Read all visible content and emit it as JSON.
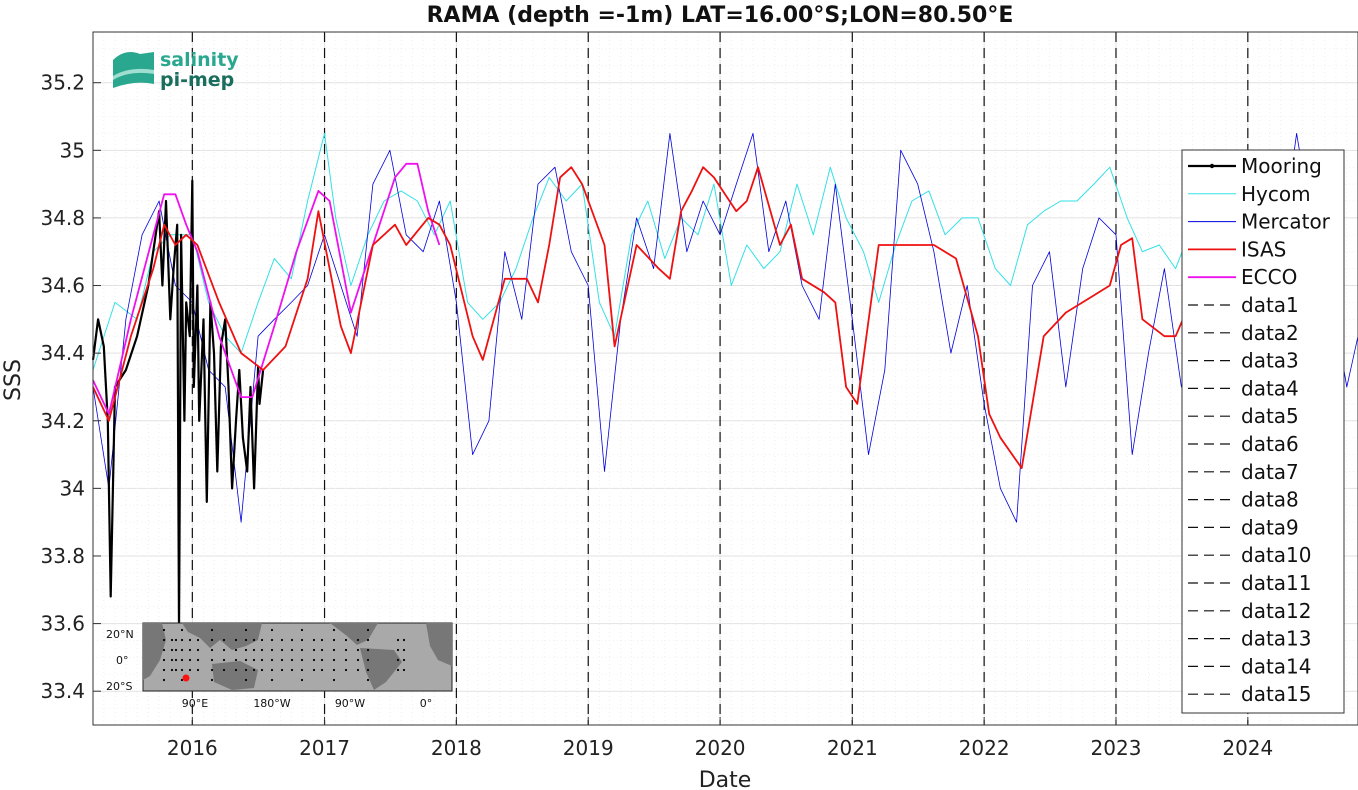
{
  "chart_data": {
    "type": "line",
    "title": "RAMA (depth =-1m) LAT=16.00°S;LON=80.50°E",
    "xlabel": "Date",
    "ylabel": "SSS",
    "xlim": [
      "2015-04-01",
      "2024-11-01"
    ],
    "ylim": [
      33.3,
      35.35
    ],
    "xticks": [
      {
        "label": "2016",
        "date": "2016-01-01"
      },
      {
        "label": "2017",
        "date": "2017-01-01"
      },
      {
        "label": "2018",
        "date": "2018-01-01"
      },
      {
        "label": "2019",
        "date": "2019-01-01"
      },
      {
        "label": "2020",
        "date": "2020-01-01"
      },
      {
        "label": "2021",
        "date": "2021-01-01"
      },
      {
        "label": "2022",
        "date": "2022-01-01"
      },
      {
        "label": "2023",
        "date": "2023-01-01"
      },
      {
        "label": "2024",
        "date": "2024-01-01"
      }
    ],
    "yticks": [
      {
        "label": "33.4",
        "value": 33.4
      },
      {
        "label": "33.6",
        "value": 33.6
      },
      {
        "label": "33.8",
        "value": 33.8
      },
      {
        "label": "34",
        "value": 34.0
      },
      {
        "label": "34.2",
        "value": 34.2
      },
      {
        "label": "34.4",
        "value": 34.4
      },
      {
        "label": "34.6",
        "value": 34.6
      },
      {
        "label": "34.8",
        "value": 34.8
      },
      {
        "label": "35",
        "value": 35.0
      },
      {
        "label": "35.2",
        "value": 35.2
      }
    ],
    "grid": true,
    "legend_position": "right",
    "vlines": [
      "2016-01-01",
      "2017-01-01",
      "2018-01-01",
      "2019-01-01",
      "2020-01-01",
      "2021-01-01",
      "2022-01-01",
      "2023-01-01",
      "2024-01-01"
    ],
    "series": [
      {
        "name": "Mooring",
        "color": "#000000",
        "width": 2.2,
        "x": [
          "2015-04-01",
          "2015-04-15",
          "2015-05-01",
          "2015-05-12",
          "2015-05-20",
          "2015-06-01",
          "2015-07-01",
          "2015-08-01",
          "2015-09-01",
          "2015-10-01",
          "2015-10-10",
          "2015-10-20",
          "2015-11-01",
          "2015-11-10",
          "2015-11-20",
          "2015-11-25",
          "2015-12-01",
          "2015-12-10",
          "2015-12-15",
          "2015-12-25",
          "2016-01-01",
          "2016-01-05",
          "2016-01-15",
          "2016-01-20",
          "2016-02-01",
          "2016-02-10",
          "2016-02-20",
          "2016-03-01",
          "2016-03-10",
          "2016-03-20",
          "2016-04-01",
          "2016-04-10",
          "2016-04-20",
          "2016-05-01",
          "2016-05-10",
          "2016-05-20",
          "2016-06-01",
          "2016-06-10",
          "2016-06-20",
          "2016-07-01",
          "2016-07-05",
          "2016-07-15"
        ],
        "y": [
          34.38,
          34.5,
          34.42,
          34.2,
          33.68,
          34.3,
          34.35,
          34.45,
          34.6,
          34.82,
          34.6,
          34.85,
          34.5,
          34.65,
          34.78,
          33.58,
          34.75,
          34.2,
          34.55,
          34.45,
          34.91,
          34.3,
          34.6,
          34.2,
          34.5,
          33.96,
          34.55,
          34.4,
          34.05,
          34.42,
          34.5,
          34.3,
          34.0,
          34.2,
          34.35,
          34.15,
          34.05,
          34.3,
          34.0,
          34.36,
          34.25,
          34.35
        ]
      },
      {
        "name": "Hycom",
        "color": "#33e0e6",
        "width": 1,
        "x": [
          "2015-04-01",
          "2015-06-01",
          "2015-08-01",
          "2015-09-15",
          "2015-11-01",
          "2016-01-01",
          "2016-02-15",
          "2016-04-01",
          "2016-05-15",
          "2016-07-01",
          "2016-08-15",
          "2016-10-01",
          "2016-11-15",
          "2017-01-01",
          "2017-02-01",
          "2017-03-15",
          "2017-05-01",
          "2017-06-15",
          "2017-08-01",
          "2017-09-15",
          "2017-11-01",
          "2017-12-15",
          "2018-02-01",
          "2018-03-15",
          "2018-05-01",
          "2018-06-15",
          "2018-08-01",
          "2018-09-15",
          "2018-11-01",
          "2018-12-15",
          "2019-02-01",
          "2019-03-15",
          "2019-05-01",
          "2019-06-15",
          "2019-08-01",
          "2019-09-15",
          "2019-11-01",
          "2019-12-15",
          "2020-02-01",
          "2020-03-15",
          "2020-05-01",
          "2020-06-15",
          "2020-08-01",
          "2020-09-15",
          "2020-11-01",
          "2020-12-15",
          "2021-02-01",
          "2021-03-15",
          "2021-05-01",
          "2021-06-15",
          "2021-08-01",
          "2021-09-15",
          "2021-11-01",
          "2021-12-15",
          "2022-02-01",
          "2022-03-15",
          "2022-05-01",
          "2022-06-15",
          "2022-08-01",
          "2022-09-15",
          "2022-11-01",
          "2022-12-15",
          "2023-02-01",
          "2023-03-15",
          "2023-05-01",
          "2023-06-15",
          "2023-08-01"
        ],
        "y": [
          34.35,
          34.55,
          34.5,
          34.7,
          34.75,
          34.75,
          34.55,
          34.45,
          34.4,
          34.55,
          34.68,
          34.62,
          34.85,
          35.05,
          34.8,
          34.6,
          34.75,
          34.85,
          34.88,
          34.85,
          34.75,
          34.85,
          34.55,
          34.5,
          34.55,
          34.65,
          34.8,
          34.92,
          34.85,
          34.9,
          34.55,
          34.45,
          34.75,
          34.85,
          34.68,
          34.8,
          34.75,
          34.9,
          34.6,
          34.72,
          34.65,
          34.7,
          34.9,
          34.75,
          34.95,
          34.8,
          34.7,
          34.55,
          34.72,
          34.85,
          34.88,
          34.75,
          34.8,
          34.8,
          34.65,
          34.6,
          34.78,
          34.82,
          34.85,
          34.85,
          34.9,
          34.95,
          34.8,
          34.7,
          34.72,
          34.65,
          34.78
        ]
      },
      {
        "name": "Mercator",
        "color": "#0000dd",
        "width": 0.8,
        "x": [
          "2015-04-01",
          "2015-05-15",
          "2015-07-01",
          "2015-08-15",
          "2015-10-01",
          "2015-11-15",
          "2016-01-01",
          "2016-02-15",
          "2016-04-01",
          "2016-05-15",
          "2016-07-01",
          "2016-08-15",
          "2016-10-01",
          "2016-11-15",
          "2017-01-01",
          "2017-02-15",
          "2017-04-01",
          "2017-05-15",
          "2017-07-01",
          "2017-08-15",
          "2017-10-01",
          "2017-11-15",
          "2018-01-01",
          "2018-02-15",
          "2018-04-01",
          "2018-05-15",
          "2018-07-01",
          "2018-08-15",
          "2018-10-01",
          "2018-11-15",
          "2019-01-01",
          "2019-02-15",
          "2019-04-01",
          "2019-05-15",
          "2019-07-01",
          "2019-08-15",
          "2019-10-01",
          "2019-11-15",
          "2020-01-01",
          "2020-02-15",
          "2020-04-01",
          "2020-05-15",
          "2020-07-01",
          "2020-08-15",
          "2020-10-01",
          "2020-11-15",
          "2021-01-01",
          "2021-02-15",
          "2021-04-01",
          "2021-05-15",
          "2021-07-01",
          "2021-08-15",
          "2021-10-01",
          "2021-11-15",
          "2022-01-01",
          "2022-02-15",
          "2022-04-01",
          "2022-05-15",
          "2022-07-01",
          "2022-08-15",
          "2022-10-01",
          "2022-11-15",
          "2023-01-01",
          "2023-02-15",
          "2023-04-01",
          "2023-05-15",
          "2023-07-01",
          "2023-08-15",
          "2023-10-01",
          "2023-11-15",
          "2024-01-01",
          "2024-02-15",
          "2024-04-01",
          "2024-05-15",
          "2024-07-01",
          "2024-08-15",
          "2024-10-01",
          "2024-11-01"
        ],
        "y": [
          34.3,
          34.0,
          34.5,
          34.75,
          34.85,
          34.6,
          34.55,
          34.35,
          34.3,
          33.9,
          34.45,
          34.5,
          34.55,
          34.6,
          34.75,
          34.6,
          34.45,
          34.9,
          35.0,
          34.75,
          34.7,
          34.85,
          34.55,
          34.1,
          34.2,
          34.7,
          34.5,
          34.9,
          34.95,
          34.7,
          34.6,
          34.05,
          34.5,
          34.8,
          34.65,
          35.05,
          34.7,
          34.85,
          34.75,
          34.9,
          35.05,
          34.7,
          34.85,
          34.6,
          34.5,
          34.9,
          34.5,
          34.1,
          34.35,
          35.0,
          34.9,
          34.7,
          34.4,
          34.6,
          34.25,
          34.0,
          33.9,
          34.6,
          34.7,
          34.3,
          34.65,
          34.8,
          34.75,
          34.1,
          34.4,
          34.65,
          34.3,
          34.5,
          34.35,
          34.55,
          34.75,
          34.95,
          34.7,
          35.05,
          34.75,
          34.6,
          34.3,
          34.45
        ]
      },
      {
        "name": "ISAS",
        "color": "#ee1111",
        "width": 1.8,
        "x": [
          "2015-04-01",
          "2015-05-15",
          "2015-07-15",
          "2015-09-15",
          "2015-10-15",
          "2015-11-15",
          "2015-12-15",
          "2016-01-15",
          "2016-03-15",
          "2016-05-15",
          "2016-07-15",
          "2016-09-15",
          "2016-11-15",
          "2016-12-15",
          "2017-02-15",
          "2017-03-15",
          "2017-05-15",
          "2017-07-15",
          "2017-08-15",
          "2017-10-15",
          "2017-11-15",
          "2017-12-15",
          "2018-02-15",
          "2018-03-15",
          "2018-05-15",
          "2018-07-15",
          "2018-08-15",
          "2018-09-15",
          "2018-10-15",
          "2018-11-15",
          "2018-12-15",
          "2019-02-15",
          "2019-03-15",
          "2019-05-15",
          "2019-07-15",
          "2019-08-15",
          "2019-09-15",
          "2019-10-15",
          "2019-11-15",
          "2019-12-15",
          "2020-02-15",
          "2020-03-15",
          "2020-04-15",
          "2020-06-15",
          "2020-07-15",
          "2020-08-15",
          "2020-10-15",
          "2020-11-15",
          "2020-12-15",
          "2021-01-15",
          "2021-03-15",
          "2021-04-15",
          "2021-06-15",
          "2021-08-15",
          "2021-10-15",
          "2021-12-15",
          "2022-01-15",
          "2022-02-15",
          "2022-04-15",
          "2022-06-15",
          "2022-08-15",
          "2022-10-15",
          "2022-12-15",
          "2023-01-15",
          "2023-02-15",
          "2023-03-15",
          "2023-05-15",
          "2023-06-15",
          "2023-08-15"
        ],
        "y": [
          34.3,
          34.2,
          34.45,
          34.65,
          34.78,
          34.72,
          34.75,
          34.72,
          34.55,
          34.4,
          34.35,
          34.42,
          34.62,
          34.82,
          34.48,
          34.4,
          34.72,
          34.78,
          34.72,
          34.8,
          34.78,
          34.72,
          34.45,
          34.38,
          34.62,
          34.62,
          34.55,
          34.72,
          34.92,
          34.95,
          34.9,
          34.72,
          34.42,
          34.72,
          34.65,
          34.62,
          34.82,
          34.88,
          34.95,
          34.92,
          34.82,
          34.85,
          34.95,
          34.72,
          34.78,
          34.62,
          34.58,
          34.55,
          34.3,
          34.25,
          34.72,
          34.72,
          34.72,
          34.72,
          34.68,
          34.45,
          34.22,
          34.15,
          34.06,
          34.45,
          34.52,
          34.56,
          34.6,
          34.72,
          34.74,
          34.5,
          34.45,
          34.45,
          34.6
        ]
      },
      {
        "name": "ECCO",
        "color": "#ee11ee",
        "width": 1.8,
        "x": [
          "2015-04-01",
          "2015-05-15",
          "2015-07-15",
          "2015-09-15",
          "2015-10-15",
          "2015-11-15",
          "2015-12-15",
          "2016-01-15",
          "2016-03-15",
          "2016-05-15",
          "2016-06-15",
          "2016-08-15",
          "2016-10-15",
          "2016-12-15",
          "2017-01-15",
          "2017-03-15",
          "2017-05-15",
          "2017-07-15",
          "2017-08-15",
          "2017-09-15",
          "2017-10-15",
          "2017-11-15"
        ],
        "y": [
          34.32,
          34.22,
          34.5,
          34.75,
          34.87,
          34.87,
          34.78,
          34.7,
          34.45,
          34.27,
          34.27,
          34.48,
          34.7,
          34.88,
          34.85,
          34.52,
          34.72,
          34.92,
          34.96,
          34.96,
          34.82,
          34.72
        ]
      }
    ],
    "legend": [
      "Mooring",
      "Hycom",
      "Mercator",
      "ISAS",
      "ECCO",
      "data1",
      "data2",
      "data3",
      "data4",
      "data5",
      "data6",
      "data7",
      "data8",
      "data9",
      "data10",
      "data11",
      "data12",
      "data13",
      "data14",
      "data15"
    ],
    "logo": {
      "line1": "salinity",
      "line2": "pi-mep"
    },
    "inset_map": {
      "ylabels": [
        "20°N",
        "0°",
        "20°S"
      ],
      "xlabels": [
        "90°E",
        "180°W",
        "90°W",
        "0°"
      ]
    }
  }
}
